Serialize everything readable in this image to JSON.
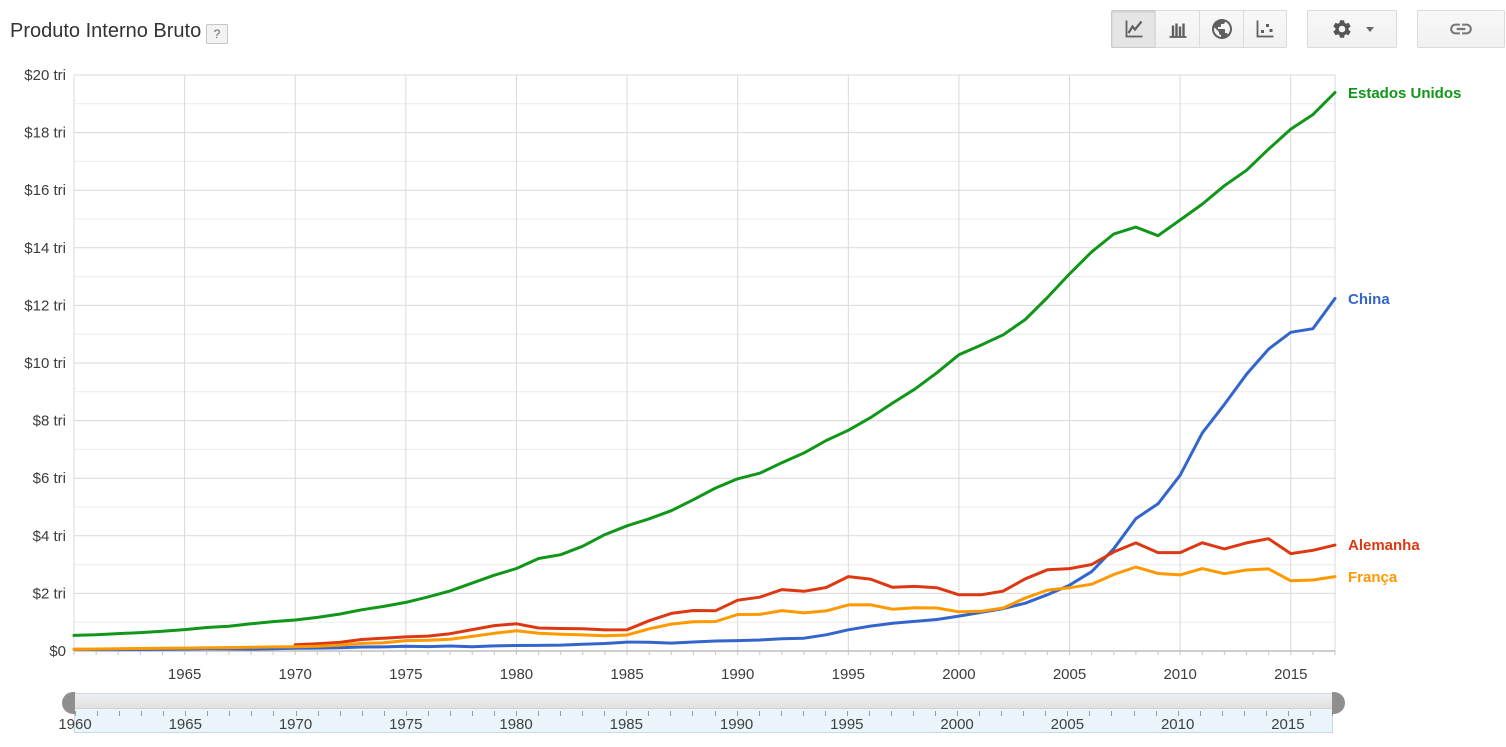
{
  "header": {
    "title": "Produto Interno Bruto",
    "help_label": "?"
  },
  "toolbar": {
    "chart_type_buttons": [
      {
        "id": "line",
        "icon": "line-chart-icon",
        "selected": true
      },
      {
        "id": "bar",
        "icon": "column-chart-icon",
        "selected": false
      },
      {
        "id": "map",
        "icon": "map-globe-icon",
        "selected": false
      },
      {
        "id": "scatter",
        "icon": "scatter-chart-icon",
        "selected": false
      }
    ],
    "settings_button": {
      "icon": "gear-icon",
      "dropdown_icon": "caret-down-icon"
    },
    "link_button": {
      "icon": "link-icon"
    }
  },
  "chart_data": {
    "type": "line",
    "title": "Produto Interno Bruto",
    "unit": "USD trillions",
    "x_range": [
      1960,
      2017
    ],
    "y_range": [
      0,
      20
    ],
    "y_major_step": 2,
    "y_minor_step": 1,
    "grid": true,
    "legend_position": "right-of-line-ends",
    "y_tick_labels": [
      "$0",
      "$2 tri",
      "$4 tri",
      "$6 tri",
      "$8 tri",
      "$10 tri",
      "$12 tri",
      "$14 tri",
      "$16 tri",
      "$18 tri",
      "$20 tri"
    ],
    "x_tick_labels": [
      "1965",
      "1970",
      "1975",
      "1980",
      "1985",
      "1990",
      "1995",
      "2000",
      "2005",
      "2010",
      "2015"
    ],
    "series": [
      {
        "name": "Estados Unidos",
        "color": "#109618",
        "start_year": 1960,
        "values": [
          0.543,
          0.563,
          0.605,
          0.639,
          0.686,
          0.744,
          0.815,
          0.862,
          0.943,
          1.02,
          1.076,
          1.168,
          1.282,
          1.429,
          1.549,
          1.689,
          1.878,
          2.086,
          2.357,
          2.632,
          2.863,
          3.211,
          3.345,
          3.638,
          4.041,
          4.347,
          4.59,
          4.87,
          5.253,
          5.658,
          5.98,
          6.174,
          6.539,
          6.879,
          7.309,
          7.664,
          8.1,
          8.609,
          9.089,
          9.661,
          10.285,
          10.622,
          10.978,
          11.511,
          12.275,
          13.094,
          13.856,
          14.478,
          14.719,
          14.419,
          14.964,
          15.518,
          16.155,
          16.692,
          17.428,
          18.121,
          18.624,
          19.391
        ]
      },
      {
        "name": "China",
        "color": "#3366cc",
        "start_year": 1960,
        "values": [
          0.06,
          0.05,
          0.047,
          0.051,
          0.06,
          0.07,
          0.077,
          0.072,
          0.071,
          0.08,
          0.093,
          0.1,
          0.113,
          0.139,
          0.144,
          0.163,
          0.154,
          0.175,
          0.149,
          0.178,
          0.191,
          0.196,
          0.205,
          0.231,
          0.26,
          0.31,
          0.301,
          0.273,
          0.312,
          0.348,
          0.361,
          0.383,
          0.427,
          0.445,
          0.564,
          0.735,
          0.864,
          0.962,
          1.029,
          1.094,
          1.211,
          1.339,
          1.471,
          1.66,
          1.955,
          2.286,
          2.752,
          3.552,
          4.598,
          5.11,
          6.101,
          7.573,
          8.561,
          9.607,
          10.482,
          11.065,
          11.191,
          12.238
        ]
      },
      {
        "name": "Alemanha",
        "color": "#dc3912",
        "start_year": 1970,
        "values": [
          0.215,
          0.25,
          0.299,
          0.398,
          0.445,
          0.49,
          0.519,
          0.601,
          0.742,
          0.881,
          0.946,
          0.8,
          0.78,
          0.77,
          0.731,
          0.74,
          1.052,
          1.307,
          1.407,
          1.398,
          1.765,
          1.869,
          2.131,
          2.072,
          2.205,
          2.585,
          2.498,
          2.212,
          2.243,
          2.197,
          1.95,
          1.951,
          2.079,
          2.506,
          2.819,
          2.861,
          3.002,
          3.44,
          3.752,
          3.418,
          3.417,
          3.758,
          3.544,
          3.753,
          3.899,
          3.383,
          3.496,
          3.677
        ]
      },
      {
        "name": "França",
        "color": "#ff9900",
        "start_year": 1960,
        "values": [
          0.063,
          0.069,
          0.076,
          0.086,
          0.095,
          0.102,
          0.11,
          0.119,
          0.13,
          0.141,
          0.149,
          0.165,
          0.204,
          0.265,
          0.286,
          0.362,
          0.374,
          0.411,
          0.507,
          0.614,
          0.702,
          0.616,
          0.585,
          0.56,
          0.531,
          0.554,
          0.771,
          0.934,
          1.019,
          1.025,
          1.269,
          1.27,
          1.402,
          1.323,
          1.394,
          1.602,
          1.605,
          1.453,
          1.504,
          1.493,
          1.362,
          1.378,
          1.494,
          1.841,
          2.116,
          2.196,
          2.318,
          2.657,
          2.918,
          2.69,
          2.643,
          2.861,
          2.684,
          2.811,
          2.852,
          2.438,
          2.465,
          2.582
        ]
      }
    ]
  },
  "timeline": {
    "start_year": 1960,
    "end_year": 2017,
    "selected_start": 1960,
    "selected_end": 2017,
    "label_step": 5,
    "labels": [
      "1960",
      "1965",
      "1970",
      "1975",
      "1980",
      "1985",
      "1990",
      "1995",
      "2000",
      "2005",
      "2010",
      "2015"
    ]
  }
}
